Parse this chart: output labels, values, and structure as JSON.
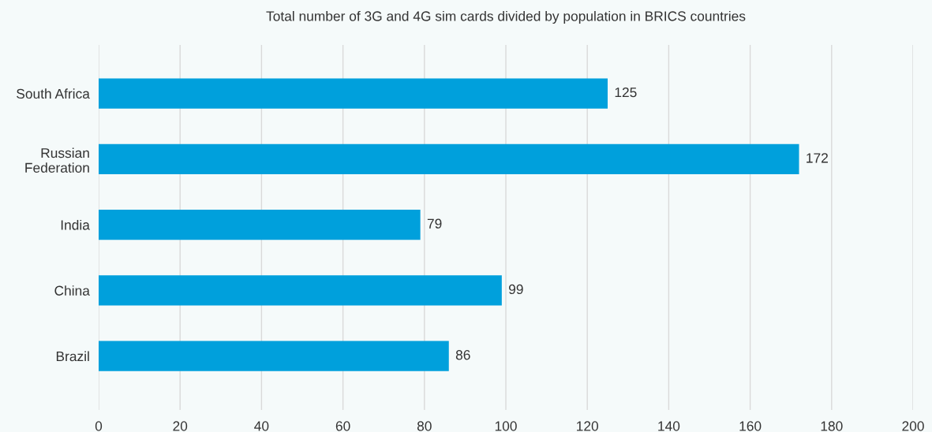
{
  "chart_data": {
    "type": "bar",
    "orientation": "horizontal",
    "title": "Total number of 3G and 4G sim cards divided by population in BRICS countries",
    "categories": [
      "South Africa",
      "Russian Federation",
      "India",
      "China",
      "Brazil"
    ],
    "values": [
      125,
      172,
      79,
      99,
      86
    ],
    "color": "#00a0dc",
    "xlim": [
      0,
      200
    ],
    "xticks": [
      0,
      20,
      40,
      60,
      80,
      100,
      120,
      140,
      160,
      180,
      200
    ],
    "grid": "x",
    "data_labels": true
  }
}
